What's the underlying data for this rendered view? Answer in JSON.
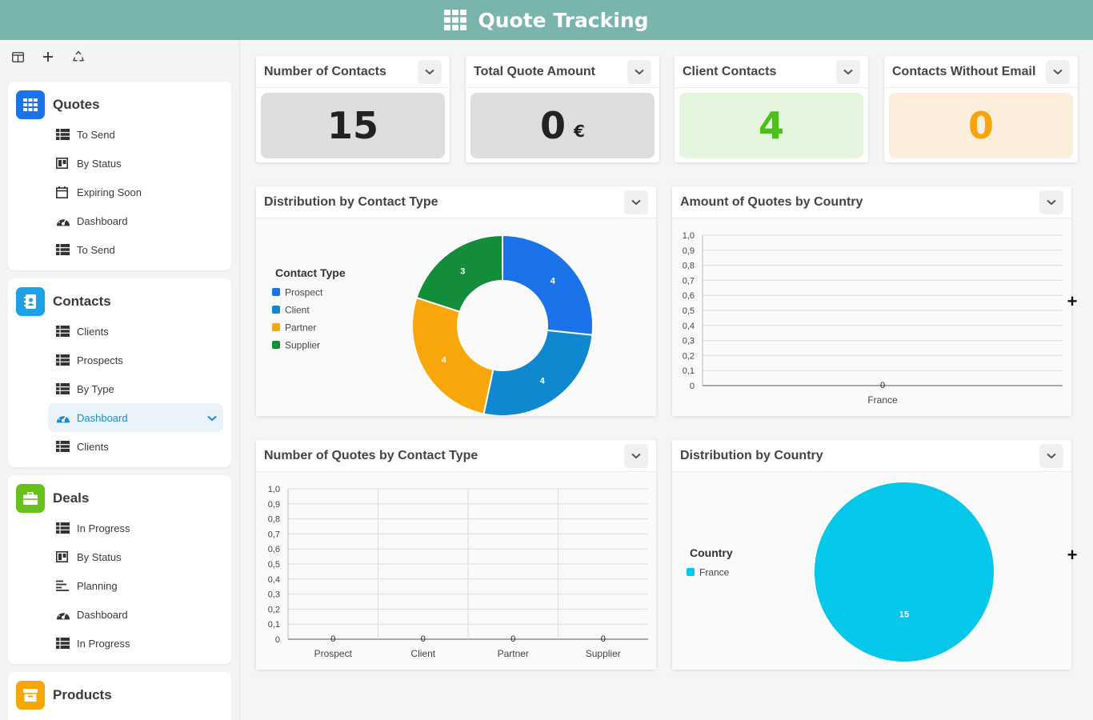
{
  "header": {
    "title": "Quote Tracking"
  },
  "sidebar": {
    "groups": [
      {
        "title": "Quotes",
        "color": "#1a73e8",
        "items": [
          {
            "label": "To Send",
            "icon": "table-icon"
          },
          {
            "label": "By Status",
            "icon": "kanban-icon"
          },
          {
            "label": "Expiring Soon",
            "icon": "calendar-icon"
          },
          {
            "label": "Dashboard",
            "icon": "dashboard-icon"
          },
          {
            "label": "To Send",
            "icon": "table-icon"
          }
        ]
      },
      {
        "title": "Contacts",
        "color": "#1ea0e6",
        "items": [
          {
            "label": "Clients",
            "icon": "table-icon"
          },
          {
            "label": "Prospects",
            "icon": "table-icon"
          },
          {
            "label": "By Type",
            "icon": "table-icon"
          },
          {
            "label": "Dashboard",
            "icon": "dashboard-icon",
            "active": true
          },
          {
            "label": "Clients",
            "icon": "table-icon"
          }
        ]
      },
      {
        "title": "Deals",
        "color": "#66c21a",
        "items": [
          {
            "label": "In Progress",
            "icon": "table-icon"
          },
          {
            "label": "By Status",
            "icon": "kanban-icon"
          },
          {
            "label": "Planning",
            "icon": "gantt-icon"
          },
          {
            "label": "Dashboard",
            "icon": "dashboard-icon"
          },
          {
            "label": "In Progress",
            "icon": "table-icon"
          }
        ]
      },
      {
        "title": "Products",
        "color": "#f6a609",
        "items": []
      }
    ]
  },
  "kpis": [
    {
      "title": "Number of Contacts",
      "value": "15",
      "unit": "",
      "bg": "#dedede",
      "color": "#222222"
    },
    {
      "title": "Total Quote Amount",
      "value": "0",
      "unit": "€",
      "bg": "#dedede",
      "color": "#222222"
    },
    {
      "title": "Client Contacts",
      "value": "4",
      "unit": "",
      "bg": "#e3f5dc",
      "color": "#4cbf1a"
    },
    {
      "title": "Contacts Without Email",
      "value": "0",
      "unit": "",
      "bg": "#fbeedd",
      "color": "#f7a30c"
    }
  ],
  "charts": {
    "distribution_by_contact_type": {
      "title": "Distribution by Contact Type"
    },
    "amount_by_country": {
      "title": "Amount of Quotes by Country"
    },
    "quotes_by_contact_type": {
      "title": "Number of Quotes by Contact Type"
    },
    "distribution_by_country": {
      "title": "Distribution by Country"
    }
  },
  "chart_data": [
    {
      "type": "pie",
      "donut": true,
      "title": "Distribution by Contact Type",
      "legend_title": "Contact Type",
      "legend_position": "left",
      "categories": [
        "Prospect",
        "Client",
        "Partner",
        "Supplier"
      ],
      "values": [
        4,
        4,
        4,
        3
      ],
      "colors": [
        "#1a73e8",
        "#0f88d0",
        "#f9a60a",
        "#138d3a"
      ]
    },
    {
      "type": "bar",
      "title": "Amount of Quotes by Country",
      "categories": [
        "France"
      ],
      "values": [
        0
      ],
      "ylim": [
        0,
        1
      ],
      "yticks": [
        "0",
        "0,1",
        "0,2",
        "0,3",
        "0,4",
        "0,5",
        "0,6",
        "0,7",
        "0,8",
        "0,9",
        "1,0"
      ],
      "grid": true
    },
    {
      "type": "bar",
      "title": "Number of Quotes by Contact Type",
      "categories": [
        "Prospect",
        "Client",
        "Partner",
        "Supplier"
      ],
      "values": [
        0,
        0,
        0,
        0
      ],
      "ylim": [
        0,
        1
      ],
      "yticks": [
        "0",
        "0,1",
        "0,2",
        "0,3",
        "0,4",
        "0,5",
        "0,6",
        "0,7",
        "0,8",
        "0,9",
        "1,0"
      ],
      "grid": true
    },
    {
      "type": "pie",
      "donut": false,
      "title": "Distribution by Country",
      "legend_title": "Country",
      "legend_position": "left",
      "categories": [
        "France"
      ],
      "values": [
        15
      ],
      "colors": [
        "#05c7ea"
      ]
    }
  ]
}
